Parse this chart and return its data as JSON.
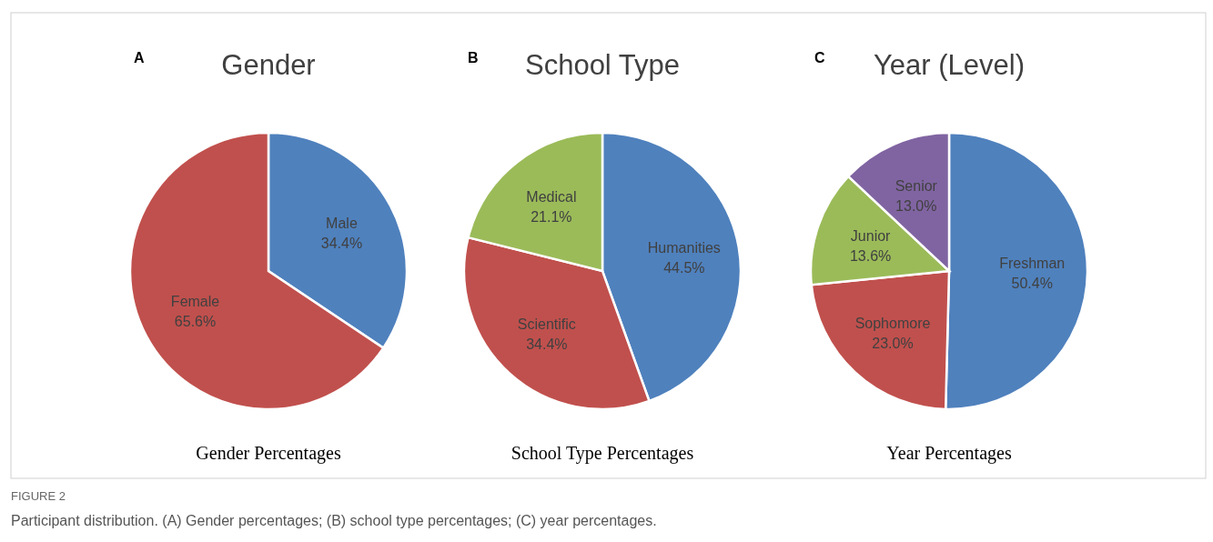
{
  "chart_data": [
    {
      "type": "pie",
      "title": "Gender",
      "xlabel": "Gender Percentages",
      "annotations": [
        "A",
        "FIGURE 2",
        "Participant distribution. (A) Gender percentages; (B) school type percentages; (C) year percentages."
      ],
      "categories": [
        "Male",
        "Female"
      ],
      "values": [
        34.4,
        65.6
      ],
      "value_labels": [
        "34.4%",
        "65.6%"
      ],
      "colors": [
        "#4f81bd",
        "#c0504d"
      ]
    },
    {
      "type": "pie",
      "title": "School Type",
      "xlabel": "School Type Percentages",
      "annotations": [
        "B"
      ],
      "categories": [
        "Humanities",
        "Scientific",
        "Medical"
      ],
      "values": [
        44.5,
        34.4,
        21.1
      ],
      "value_labels": [
        "44.5%",
        "34.4%",
        "21.1%"
      ],
      "colors": [
        "#4f81bd",
        "#c0504d",
        "#9bbb59"
      ]
    },
    {
      "type": "pie",
      "title": "Year (Level)",
      "xlabel": "Year Percentages",
      "annotations": [
        "C"
      ],
      "categories": [
        "Freshman",
        "Sophomore",
        "Junior",
        "Senior"
      ],
      "values": [
        50.4,
        23.0,
        13.6,
        13.0
      ],
      "value_labels": [
        "50.4%",
        "23.0%",
        "13.6%",
        "13.0%"
      ],
      "colors": [
        "#4f81bd",
        "#c0504d",
        "#9bbb59",
        "#8064a2"
      ]
    }
  ]
}
